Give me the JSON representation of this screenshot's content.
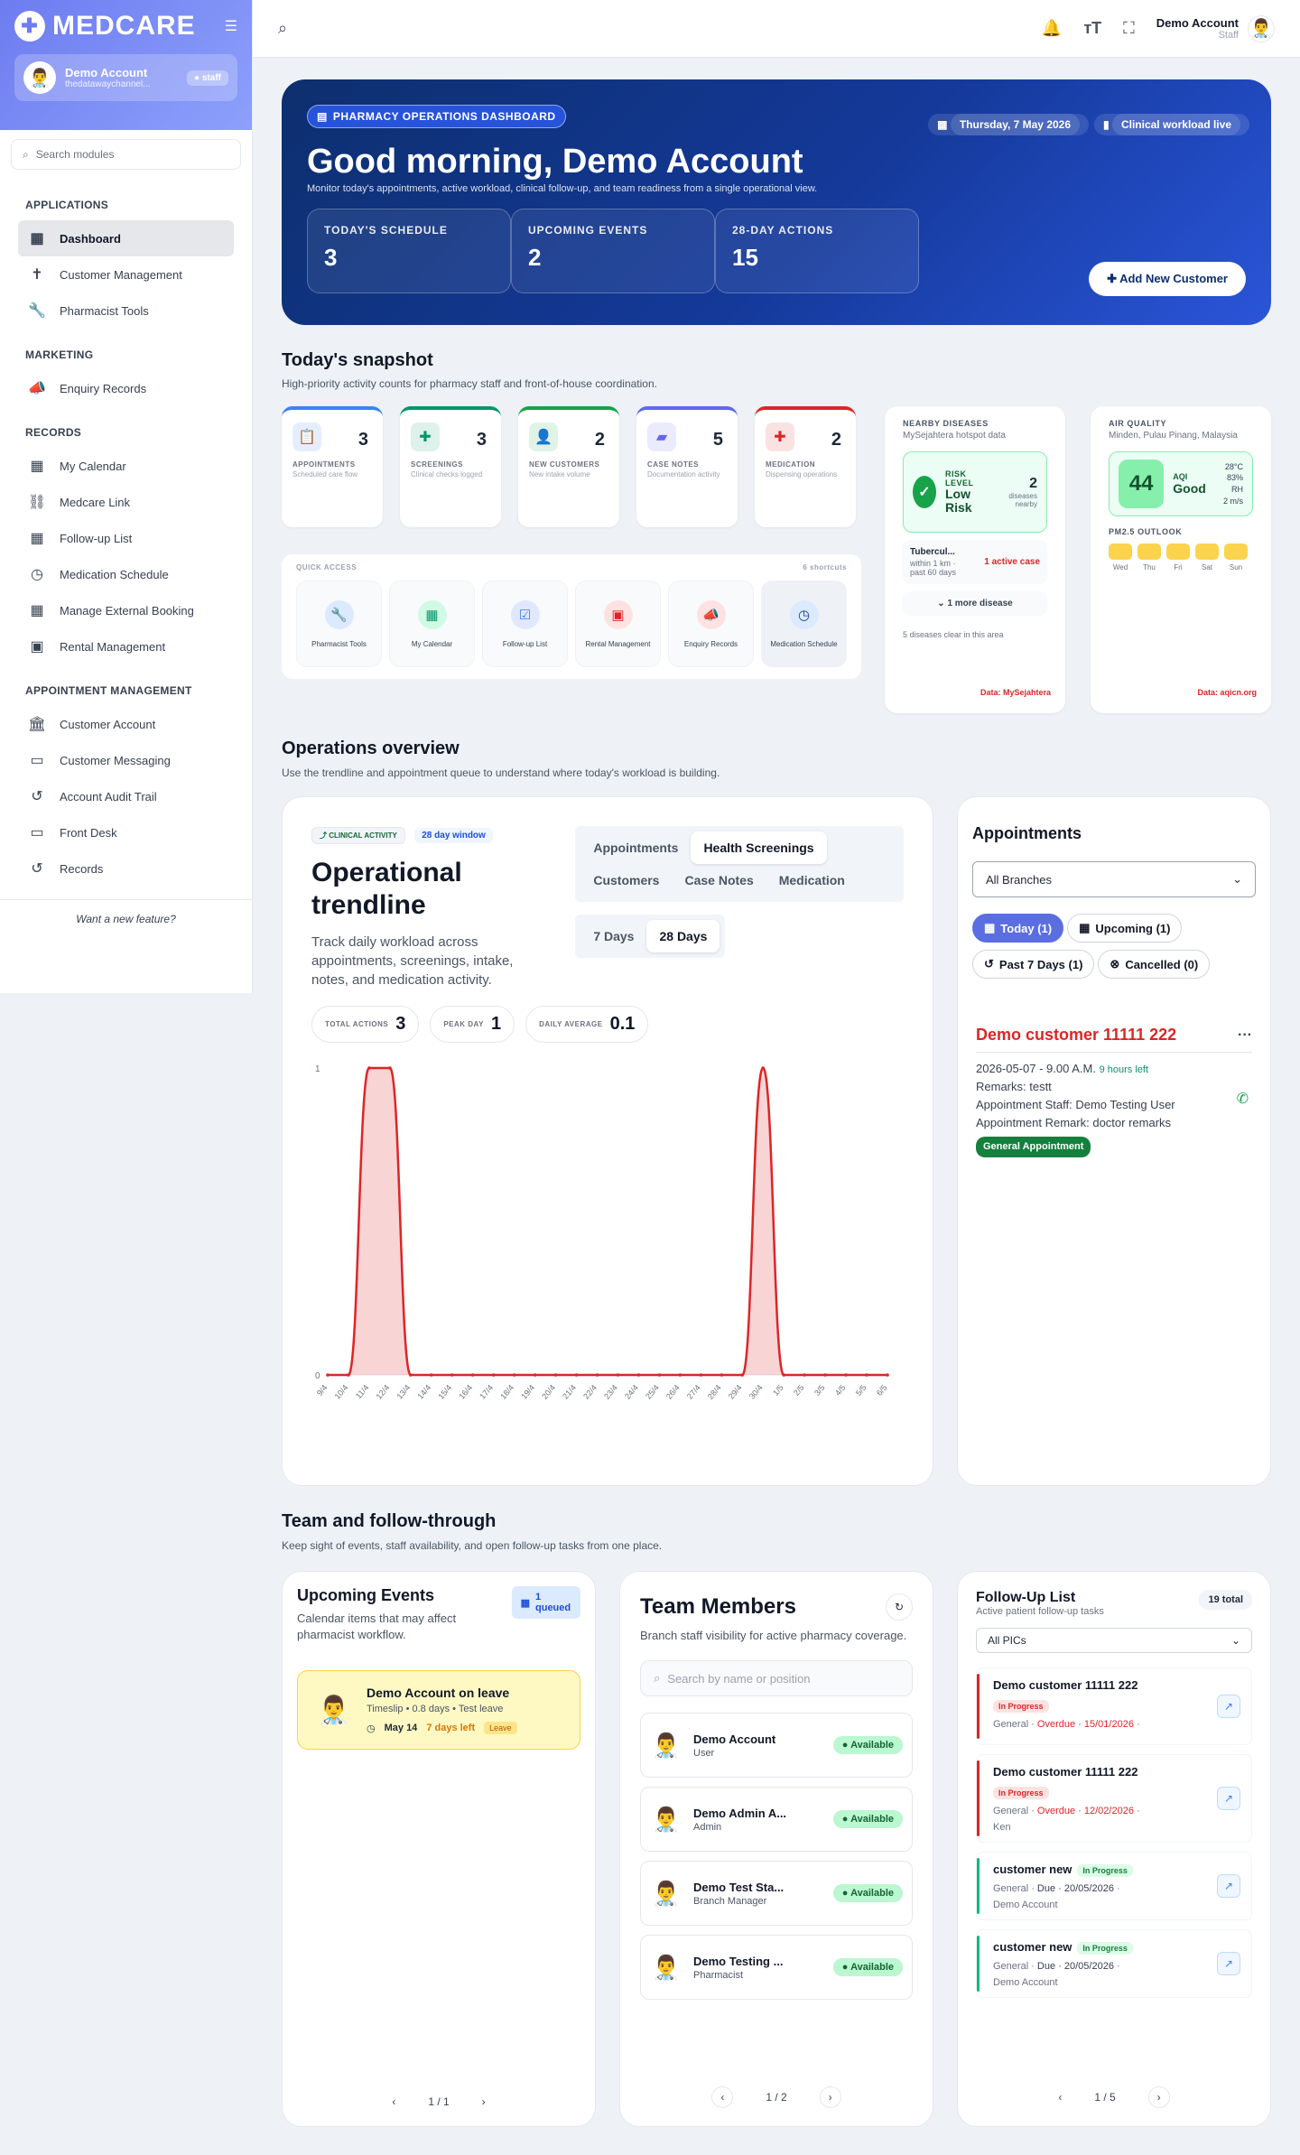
{
  "sidebar": {
    "brand": "MEDCARE",
    "account": {
      "name": "Demo Account",
      "email": "thedatawaychannel...",
      "badge": "staff"
    },
    "search_placeholder": "Search modules",
    "sections": [
      {
        "label": "APPLICATIONS",
        "items": [
          {
            "label": "Dashboard",
            "icon": "dashboard-icon",
            "active": true
          },
          {
            "label": "Customer Management",
            "icon": "person-icon"
          },
          {
            "label": "Pharmacist Tools",
            "icon": "wrench-icon"
          }
        ]
      },
      {
        "label": "MARKETING",
        "items": [
          {
            "label": "Enquiry Records",
            "icon": "megaphone-icon"
          }
        ]
      },
      {
        "label": "RECORDS",
        "items": [
          {
            "label": "My Calendar",
            "icon": "calendar-icon"
          },
          {
            "label": "Medcare Link",
            "icon": "link-icon"
          },
          {
            "label": "Follow-up List",
            "icon": "calendar-icon"
          },
          {
            "label": "Medication Schedule",
            "icon": "clock-icon"
          },
          {
            "label": "Manage External Booking",
            "icon": "calendar-icon"
          },
          {
            "label": "Rental Management",
            "icon": "box-icon"
          }
        ]
      },
      {
        "label": "APPOINTMENT MANAGEMENT",
        "items": [
          {
            "label": "Customer Account",
            "icon": "bank-icon"
          },
          {
            "label": "Customer Messaging",
            "icon": "message-icon"
          },
          {
            "label": "Account Audit Trail",
            "icon": "history-icon"
          },
          {
            "label": "Front Desk",
            "icon": "monitor-icon"
          },
          {
            "label": "Records",
            "icon": "history-icon"
          }
        ]
      }
    ],
    "feature_prompt": "Want a new feature?"
  },
  "topbar": {
    "account_name": "Demo Account",
    "account_role": "Staff"
  },
  "hero": {
    "chip": "PHARMACY OPERATIONS DASHBOARD",
    "date": "Thursday, 7 May 2026",
    "live": "Clinical workload live",
    "greeting": "Good morning, Demo Account",
    "subtitle": "Monitor today's appointments, active workload, clinical follow-up, and team readiness from a single operational view.",
    "kpis": [
      {
        "label": "TODAY'S SCHEDULE",
        "value": "3"
      },
      {
        "label": "UPCOMING EVENTS",
        "value": "2"
      },
      {
        "label": "28-DAY ACTIONS",
        "value": "15"
      }
    ],
    "add_button": "Add New Customer"
  },
  "snapshot": {
    "title": "Today's snapshot",
    "subtitle": "High-priority activity counts for pharmacy staff and front-of-house coordination.",
    "cards": [
      {
        "label": "APPOINTMENTS",
        "sub": "Scheduled care flow",
        "value": "3",
        "color": "#3b82f6",
        "icon": "clipboard-icon"
      },
      {
        "label": "SCREENINGS",
        "sub": "Clinical checks logged",
        "value": "3",
        "color": "#059669",
        "icon": "medical-plus-icon"
      },
      {
        "label": "NEW CUSTOMERS",
        "sub": "New intake volume",
        "value": "2",
        "color": "#16a34a",
        "icon": "person-add-icon"
      },
      {
        "label": "CASE NOTES",
        "sub": "Documentation activity",
        "value": "5",
        "color": "#6366f1",
        "icon": "folder-icon"
      },
      {
        "label": "MEDICATION",
        "sub": "Dispensing operations",
        "value": "2",
        "color": "#dc2626",
        "icon": "medication-icon"
      }
    ],
    "quick_access": {
      "label": "QUICK ACCESS",
      "count": "6 shortcuts",
      "items": [
        {
          "label": "Pharmacist Tools",
          "icon": "wrench-icon"
        },
        {
          "label": "My Calendar",
          "icon": "calendar-icon"
        },
        {
          "label": "Follow-up List",
          "icon": "checklist-icon"
        },
        {
          "label": "Rental Management",
          "icon": "box-icon"
        },
        {
          "label": "Enquiry Records",
          "icon": "megaphone-icon"
        },
        {
          "label": "Medication Schedule",
          "icon": "clock-icon"
        }
      ]
    },
    "diseases": {
      "label": "NEARBY DISEASES",
      "source": "MySejahtera hotspot data",
      "risk_label": "RISK LEVEL",
      "risk_value": "Low Risk",
      "count": "2",
      "count_label": "diseases nearby",
      "disease": "Tubercul...",
      "disease_meta": "within 1 km · past 60 days",
      "active": "1 active case",
      "more": "1 more disease",
      "clear": "5 diseases clear in this area",
      "data_src": "Data: MySejahtera"
    },
    "air": {
      "label": "AIR QUALITY",
      "location": "Minden, Pulau Pinang, Malaysia",
      "aqi": "44",
      "aqi_label": "AQI",
      "aqi_status": "Good",
      "temp": "28°C",
      "rh": "83% RH",
      "wind": "2 m/s",
      "outlook_label": "PM2.5 OUTLOOK",
      "days": [
        "Wed",
        "Thu",
        "Fri",
        "Sat",
        "Sun"
      ],
      "data_src": "Data: aqicn.org"
    }
  },
  "ops": {
    "title": "Operations overview",
    "subtitle": "Use the trendline and appointment queue to understand where today's workload is building.",
    "chip1": "CLINICAL ACTIVITY",
    "chip2": "28 day window",
    "heading": "Operational trendline",
    "desc": "Track daily workload across appointments, screenings, intake, notes, and medication activity.",
    "tabs": [
      "Appointments",
      "Health Screenings",
      "Customers",
      "Case Notes",
      "Medication"
    ],
    "active_tab": 1,
    "ranges": [
      "7 Days",
      "28 Days"
    ],
    "stats": [
      {
        "label": "TOTAL ACTIONS",
        "value": "3"
      },
      {
        "label": "PEAK DAY",
        "value": "1"
      },
      {
        "label": "DAILY AVERAGE",
        "value": "0.1"
      }
    ]
  },
  "chart_data": {
    "type": "area",
    "x": [
      "9/4",
      "10/4",
      "11/4",
      "12/4",
      "13/4",
      "14/4",
      "15/4",
      "16/4",
      "17/4",
      "18/4",
      "19/4",
      "20/4",
      "21/4",
      "22/4",
      "23/4",
      "24/4",
      "25/4",
      "26/4",
      "27/4",
      "28/4",
      "29/4",
      "30/4",
      "1/5",
      "2/5",
      "3/5",
      "4/5",
      "5/5",
      "6/5"
    ],
    "values": [
      0,
      0,
      1,
      1,
      0,
      0,
      0,
      0,
      0,
      0,
      0,
      0,
      0,
      0,
      0,
      0,
      0,
      0,
      0,
      0,
      0,
      1,
      0,
      0,
      0,
      0,
      0,
      0
    ],
    "ylim": [
      0,
      1
    ],
    "yticks": [
      "0",
      "1"
    ],
    "color": "#dc2626"
  },
  "appointments": {
    "title": "Appointments",
    "branch": "All Branches",
    "filters": [
      "Today (1)",
      "Upcoming (1)",
      "Past 7 Days (1)",
      "Cancelled (0)"
    ],
    "item": {
      "customer": "Demo customer 11111 222",
      "datetime": "2026-05-07 - 9.00 A.M.",
      "left": "9 hours left",
      "remarks": "Remarks: testt",
      "staff": "Appointment Staff: Demo Testing User",
      "remark2": "Appointment Remark: doctor remarks",
      "tag": "General Appointment"
    }
  },
  "team": {
    "title": "Team and follow-through",
    "subtitle": "Keep sight of events, staff availability, and open follow-up tasks from one place.",
    "events": {
      "title": "Upcoming Events",
      "desc": "Calendar items that may affect pharmacist workflow.",
      "queued": "1 queued",
      "event_title": "Demo Account on leave",
      "event_meta": "Timeslip • 0.8 days • Test leave",
      "event_date": "May 14",
      "event_left": "7 days left",
      "event_tag": "Leave",
      "pager": "1 / 1"
    },
    "members": {
      "title": "Team Members",
      "desc": "Branch staff visibility for active pharmacy coverage.",
      "search": "Search by name or position",
      "list": [
        {
          "name": "Demo Account",
          "role": "User",
          "status": "Available"
        },
        {
          "name": "Demo Admin A...",
          "role": "Admin",
          "status": "Available"
        },
        {
          "name": "Demo Test Sta...",
          "role": "Branch Manager",
          "status": "Available"
        },
        {
          "name": "Demo Testing ...",
          "role": "Pharmacist",
          "status": "Available"
        }
      ],
      "pager": "1 / 2"
    },
    "followup": {
      "title": "Follow-Up List",
      "sub": "Active patient follow-up tasks",
      "total": "19 total",
      "filter": "All PICs",
      "items": [
        {
          "name": "Demo customer 11111 222",
          "status": "In Progress",
          "type": "General",
          "due": "Overdue · 15/01/2026",
          "who": "",
          "color": "#dc2626"
        },
        {
          "name": "Demo customer 11111 222",
          "status": "In Progress",
          "type": "General",
          "due": "Overdue · 12/02/2026",
          "who": "Ken",
          "color": "#dc2626"
        },
        {
          "name": "customer new",
          "status": "In Progress",
          "type": "General",
          "due": "Due · 20/05/2026",
          "who": "Demo Account",
          "color": "#10b981"
        },
        {
          "name": "customer new",
          "status": "In Progress",
          "type": "General",
          "due": "Due · 20/05/2026",
          "who": "Demo Account",
          "color": "#10b981"
        }
      ],
      "pager": "1 / 5"
    }
  }
}
